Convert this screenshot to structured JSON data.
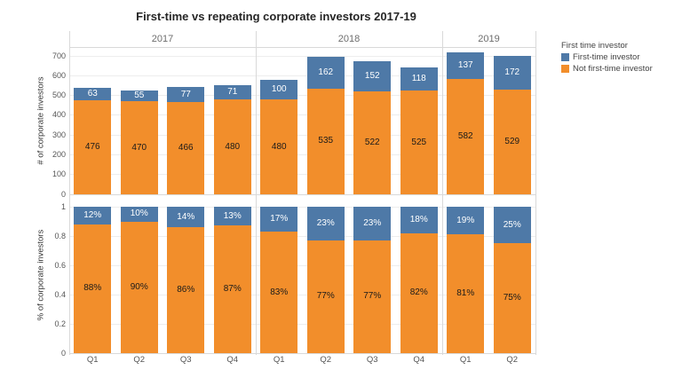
{
  "chart_data": {
    "type": "bar",
    "variant": "stacked-faceted-two-row",
    "title": "First-time vs repeating corporate investors 2017-19",
    "colors": {
      "first_time": "#4E79A7",
      "not_first_time": "#F28E2B"
    },
    "legend": {
      "title": "First time investor",
      "position": "top-right",
      "entries": [
        {
          "label": "First-time investor",
          "color_key": "first_time"
        },
        {
          "label": "Not first-time investor",
          "color_key": "not_first_time"
        }
      ]
    },
    "panels": {
      "top": {
        "ylabel": "# of corporate investors",
        "yticks": [
          0,
          100,
          200,
          300,
          400,
          500,
          600,
          700
        ],
        "ylim": [
          0,
          745
        ],
        "grid": true
      },
      "bottom": {
        "ylabel": "% of corporate investors",
        "yticks": [
          0,
          0.2,
          0.4,
          0.6,
          0.8,
          1
        ],
        "ylim": [
          0,
          1
        ],
        "grid": true
      }
    },
    "facets": [
      {
        "year": "2017",
        "bars": [
          {
            "quarter": "Q1",
            "first_time": 63,
            "not_first_time": 476,
            "first_time_pct": 12,
            "not_first_time_pct": 88
          },
          {
            "quarter": "Q2",
            "first_time": 55,
            "not_first_time": 470,
            "first_time_pct": 10,
            "not_first_time_pct": 90
          },
          {
            "quarter": "Q3",
            "first_time": 77,
            "not_first_time": 466,
            "first_time_pct": 14,
            "not_first_time_pct": 86
          },
          {
            "quarter": "Q4",
            "first_time": 71,
            "not_first_time": 480,
            "first_time_pct": 13,
            "not_first_time_pct": 87
          }
        ]
      },
      {
        "year": "2018",
        "bars": [
          {
            "quarter": "Q1",
            "first_time": 100,
            "not_first_time": 480,
            "first_time_pct": 17,
            "not_first_time_pct": 83
          },
          {
            "quarter": "Q2",
            "first_time": 162,
            "not_first_time": 535,
            "first_time_pct": 23,
            "not_first_time_pct": 77
          },
          {
            "quarter": "Q3",
            "first_time": 152,
            "not_first_time": 522,
            "first_time_pct": 23,
            "not_first_time_pct": 77
          },
          {
            "quarter": "Q4",
            "first_time": 118,
            "not_first_time": 525,
            "first_time_pct": 18,
            "not_first_time_pct": 82
          }
        ]
      },
      {
        "year": "2019",
        "bars": [
          {
            "quarter": "Q1",
            "first_time": 137,
            "not_first_time": 582,
            "first_time_pct": 19,
            "not_first_time_pct": 81
          },
          {
            "quarter": "Q2",
            "first_time": 172,
            "not_first_time": 529,
            "first_time_pct": 25,
            "not_first_time_pct": 75
          }
        ]
      }
    ]
  }
}
